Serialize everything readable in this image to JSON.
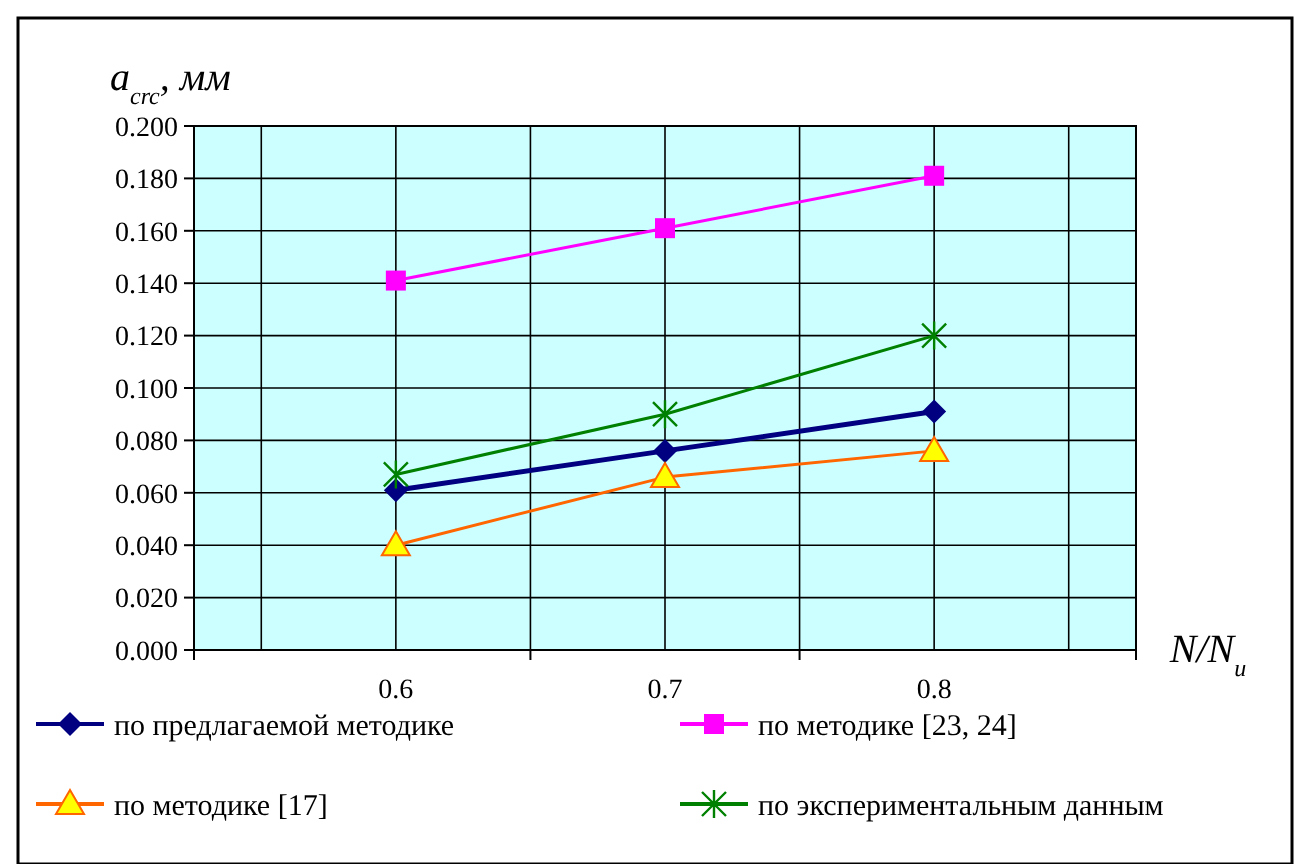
{
  "chart_data": {
    "type": "line",
    "ylabel": "a$_{crc}$, мм",
    "xlabel": "N/N$_{u}$",
    "categories": [
      "0.6",
      "0.7",
      "0.8"
    ],
    "series": [
      {
        "name": "по предлагаемой методике",
        "color": "#000080",
        "marker": "diamond",
        "values": [
          0.061,
          0.076,
          0.091
        ]
      },
      {
        "name": "по методике [23, 24]",
        "color": "#ff00ff",
        "marker": "square",
        "values": [
          0.141,
          0.161,
          0.181
        ]
      },
      {
        "name": "по методике [17]",
        "color": "#ff6600",
        "marker": "triangle",
        "values": [
          0.04,
          0.066,
          0.076
        ]
      },
      {
        "name": "по экспериментальным данным",
        "color": "#008000",
        "marker": "cross",
        "values": [
          0.067,
          0.09,
          0.12
        ]
      }
    ],
    "ylim": [
      0,
      0.2
    ],
    "yticks": [
      {
        "value": 0,
        "label": "0.000"
      },
      {
        "value": 0.02,
        "label": "0.020"
      },
      {
        "value": 0.04,
        "label": "0.040"
      },
      {
        "value": 0.06,
        "label": "0.060"
      },
      {
        "value": 0.08,
        "label": "0.080"
      },
      {
        "value": 0.1,
        "label": "0.100"
      },
      {
        "value": 0.12,
        "label": "0.120"
      },
      {
        "value": 0.14,
        "label": "0.140"
      },
      {
        "value": 0.16,
        "label": "0.160"
      },
      {
        "value": 0.18,
        "label": "0.180"
      },
      {
        "value": 0.2,
        "label": "0.200"
      }
    ],
    "grid": true,
    "legend": "bottom"
  }
}
